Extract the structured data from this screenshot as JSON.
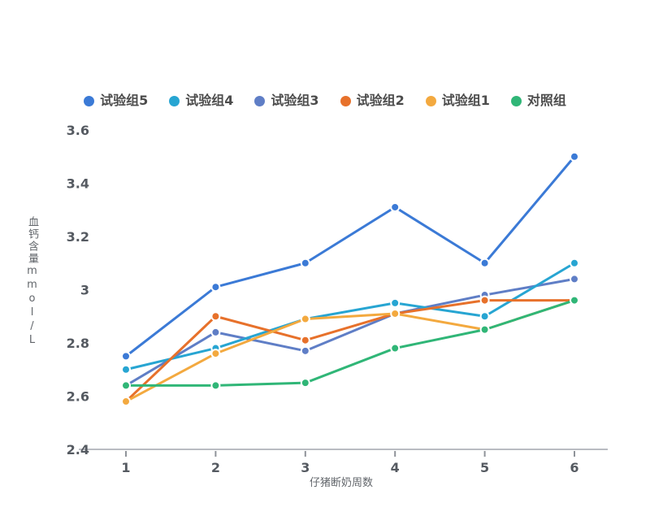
{
  "chart_data": {
    "type": "line",
    "x": [
      "1",
      "2",
      "3",
      "4",
      "5",
      "6"
    ],
    "xlabel": "仔猪断奶周数",
    "ylabel": "血钙含量mmol/L",
    "ylim": [
      2.4,
      3.6
    ],
    "yticks": [
      2.4,
      2.6,
      2.8,
      3.0,
      3.2,
      3.4,
      3.6
    ],
    "ytick_labels": [
      "2.4",
      "2.6",
      "2.8",
      "3",
      "3.2",
      "3.4",
      "3.6"
    ],
    "grid": false,
    "legend_position": "top",
    "marker": "circle",
    "series": [
      {
        "key": "test-group-5",
        "name": "试验组5",
        "color": "#3b7ad6",
        "values": [
          2.75,
          3.01,
          3.1,
          3.31,
          3.1,
          3.5
        ]
      },
      {
        "key": "test-group-4",
        "name": "试验组4",
        "color": "#27a5d2",
        "values": [
          2.7,
          2.78,
          2.89,
          2.95,
          2.9,
          3.1
        ]
      },
      {
        "key": "test-group-3",
        "name": "试验组3",
        "color": "#5f7ec6",
        "values": [
          2.64,
          2.84,
          2.77,
          2.91,
          2.98,
          3.04
        ]
      },
      {
        "key": "test-group-2",
        "name": "试验组2",
        "color": "#e7712b",
        "values": [
          2.58,
          2.9,
          2.81,
          2.91,
          2.96,
          2.96
        ]
      },
      {
        "key": "test-group-1",
        "name": "试验组1",
        "color": "#f3a93f",
        "values": [
          2.58,
          2.76,
          2.89,
          2.91,
          2.85,
          2.96
        ]
      },
      {
        "key": "control-group",
        "name": "对照组",
        "color": "#30b677",
        "values": [
          2.64,
          2.64,
          2.65,
          2.78,
          2.85,
          2.96
        ]
      }
    ],
    "draw_order": [
      "test-group-3",
      "test-group-4",
      "test-group-2",
      "test-group-1",
      "control-group",
      "test-group-5"
    ]
  }
}
